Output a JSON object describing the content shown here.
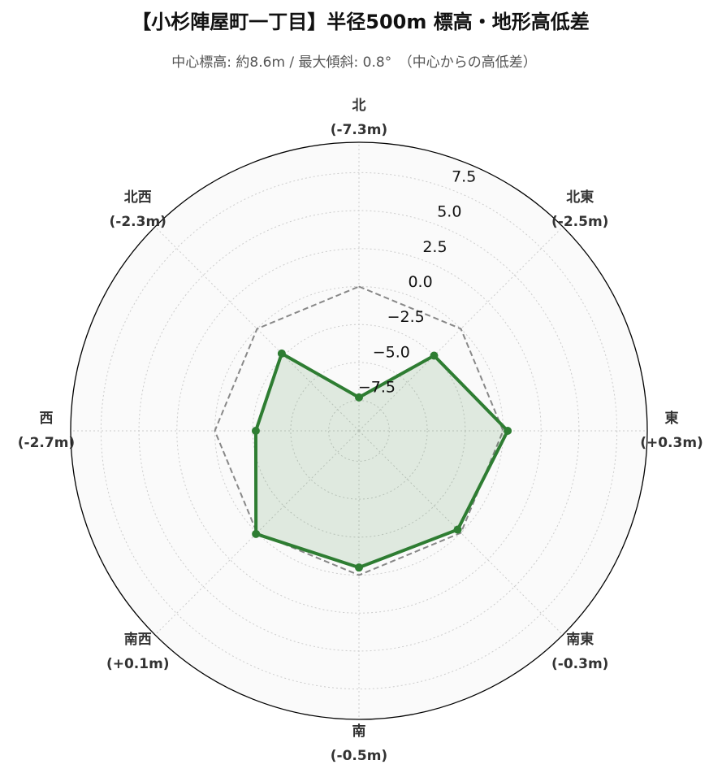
{
  "chart_data": {
    "type": "radar",
    "title": "【小杉陣屋町一丁目】半径500m 標高・地形高低差",
    "subtitle": "中心標高: 約8.6m / 最大傾斜: 0.8°　（中心からの高低差）",
    "categories": [
      "北",
      "北東",
      "東",
      "南東",
      "南",
      "南西",
      "西",
      "北西"
    ],
    "values": [
      -7.3,
      -2.5,
      0.3,
      -0.3,
      -0.5,
      0.1,
      -2.7,
      -2.3
    ],
    "value_labels": [
      "(-7.3m)",
      "(-2.5m)",
      "(+0.3m)",
      "(-0.3m)",
      "(-0.5m)",
      "(+0.1m)",
      "(-2.7m)",
      "(-2.3m)"
    ],
    "color": "#2e7d32",
    "reference_value": 0,
    "ylim": [
      -9.5,
      9.5
    ],
    "yticks": [
      {
        "value": -7.5,
        "label": "−7.5"
      },
      {
        "value": -5,
        "label": "−5.0"
      },
      {
        "value": -2.5,
        "label": "−2.5"
      },
      {
        "value": 0,
        "label": "0.0"
      },
      2.5,
      {
        "value": 5,
        "label": "5.0"
      },
      7.5
    ],
    "grid": true
  }
}
